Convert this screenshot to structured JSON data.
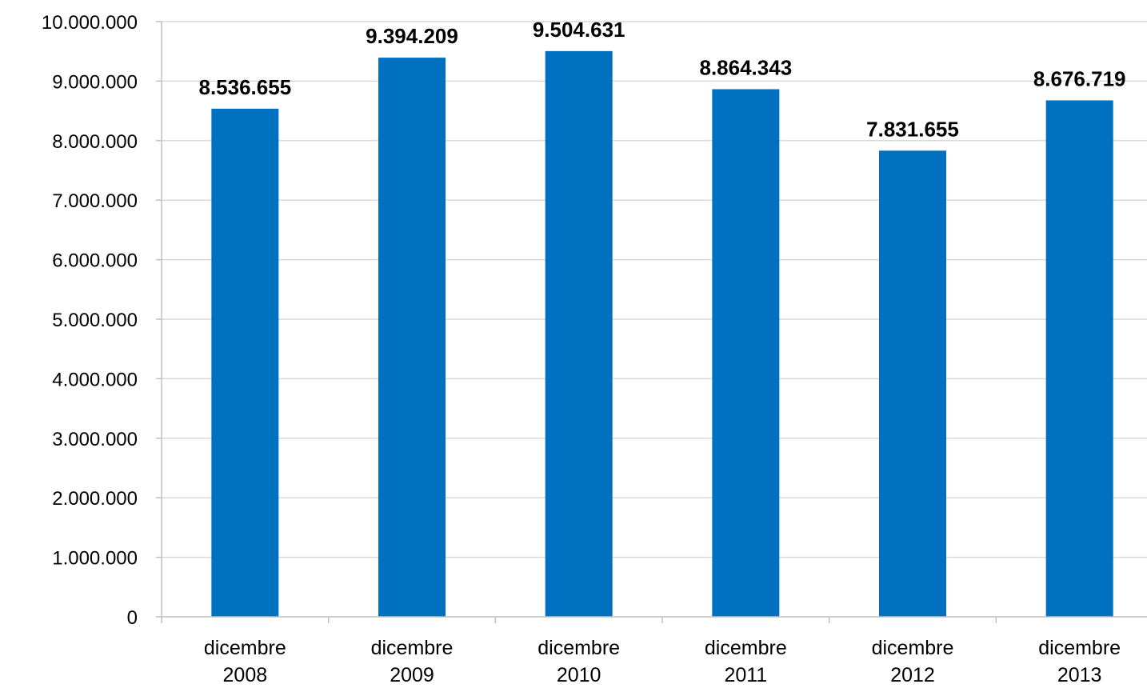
{
  "chart_data": {
    "type": "bar",
    "categories": [
      [
        "dicembre",
        "2008"
      ],
      [
        "dicembre",
        "2009"
      ],
      [
        "dicembre",
        "2010"
      ],
      [
        "dicembre",
        "2011"
      ],
      [
        "dicembre",
        "2012"
      ],
      [
        "dicembre",
        "2013"
      ]
    ],
    "values": [
      8536655,
      9394209,
      9504631,
      8864343,
      7831655,
      8676719
    ],
    "data_labels": [
      "8.536.655",
      "9.394.209",
      "9.504.631",
      "8.864.343",
      "7.831.655",
      "8.676.719"
    ],
    "y_ticks": [
      0,
      1000000,
      2000000,
      3000000,
      4000000,
      5000000,
      6000000,
      7000000,
      8000000,
      9000000,
      10000000
    ],
    "y_tick_labels": [
      "0",
      "1.000.000",
      "2.000.000",
      "3.000.000",
      "4.000.000",
      "5.000.000",
      "6.000.000",
      "7.000.000",
      "8.000.000",
      "9.000.000",
      "10.000.000"
    ],
    "ylim": [
      0,
      10000000
    ],
    "grid": true,
    "legend": "none",
    "colors": {
      "bar": "#0070C0",
      "grid": "#d9d9d9",
      "axis": "#bfbfbf"
    }
  }
}
